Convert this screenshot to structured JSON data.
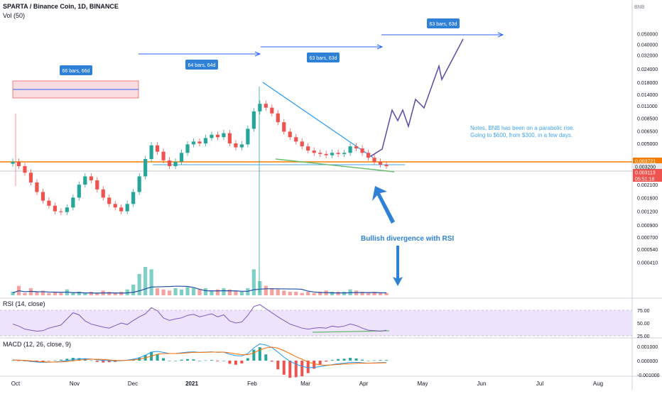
{
  "header": {
    "title": "SPARTA / Binance Coin, 1D, BINANCE",
    "volume_label": "Vol (50)",
    "currency": "BNB"
  },
  "panes": {
    "rsi_label": "RSI (14, close)",
    "macd_label": "MACD (12, 26, close, 9)"
  },
  "chart_data": [
    {
      "type": "candlestick",
      "pane": "price",
      "scale": "log",
      "x_axis": [
        "Oct",
        "Nov",
        "Dec",
        "2021",
        "Feb",
        "Mar",
        "Apr",
        "May",
        "Jun",
        "Jul",
        "Aug"
      ],
      "y_ticks": [
        "0.050000",
        "0.040000",
        "0.032000",
        "0.024000",
        "0.018000",
        "0.014000",
        "0.011000",
        "0.008500",
        "0.006500",
        "0.005000",
        "0.002100",
        "0.001600",
        "0.001200",
        "0.000900",
        "0.000700",
        "0.000540",
        "0.000410"
      ],
      "price_labels": [
        {
          "value": "0.003721",
          "color": "#f57c00"
        },
        {
          "value": "0.003200",
          "color": "#b2b5be"
        },
        {
          "value": "0.003113",
          "color": "#ef5350"
        },
        {
          "value": "05:51:18",
          "color": "#ef5350"
        }
      ],
      "close_path": [
        0.0034,
        0.0031,
        0.0027,
        0.0022,
        0.0018,
        0.0015,
        0.00135,
        0.0012,
        0.00118,
        0.0013,
        0.0016,
        0.0021,
        0.0025,
        0.0023,
        0.0019,
        0.0016,
        0.0014,
        0.0013,
        0.0012,
        0.0014,
        0.0018,
        0.0025,
        0.0036,
        0.0048,
        0.0042,
        0.0035,
        0.0031,
        0.0034,
        0.0041,
        0.0049,
        0.0052,
        0.005,
        0.0056,
        0.006,
        0.0057,
        0.0062,
        0.005,
        0.0046,
        0.0049,
        0.0068,
        0.0098,
        0.0115,
        0.0106,
        0.0094,
        0.0078,
        0.0064,
        0.0057,
        0.0052,
        0.0047,
        0.0043,
        0.0041,
        0.004,
        0.0039,
        0.0041,
        0.004,
        0.0041,
        0.0047,
        0.0045,
        0.0041,
        0.0037,
        0.0034,
        0.0032,
        0.0031
      ],
      "annotations": [
        {
          "text": "66 bars, 66d"
        },
        {
          "text": "64 bars, 64d"
        },
        {
          "text": "63 bars, 63d"
        },
        {
          "text": "63 bars, 63d"
        },
        {
          "text": "Notes, BNB has been on a parabolic rise. Going to $600, from $300, in a few days."
        },
        {
          "text": "Bullish divergence with RSI"
        }
      ]
    },
    {
      "type": "bar",
      "pane": "volume",
      "name": "Vol (50)",
      "values": [
        3,
        8,
        2,
        6,
        3,
        4,
        2,
        3,
        2,
        5,
        2,
        3,
        2,
        3,
        2,
        4,
        3,
        2,
        3,
        5,
        9,
        18,
        24,
        22,
        6,
        5,
        4,
        6,
        5,
        7,
        6,
        5,
        6,
        4,
        5,
        6,
        5,
        4,
        3,
        6,
        22,
        12,
        8,
        6,
        5,
        4,
        3,
        3,
        2,
        3,
        2,
        3,
        4,
        3,
        3,
        3,
        5,
        4,
        3,
        2,
        3,
        2,
        2
      ]
    },
    {
      "type": "line",
      "pane": "rsi",
      "name": "RSI (14, close)",
      "y_ticks": [
        "75.00",
        "50.00",
        "25.00"
      ],
      "ylim": [
        25,
        75
      ],
      "values": [
        48,
        44,
        38,
        36,
        34,
        35,
        40,
        43,
        46,
        58,
        70,
        66,
        54,
        48,
        45,
        42,
        40,
        45,
        50,
        47,
        55,
        62,
        68,
        80,
        74,
        60,
        55,
        58,
        60,
        65,
        67,
        62,
        65,
        68,
        62,
        66,
        54,
        50,
        52,
        65,
        82,
        86,
        78,
        70,
        62,
        55,
        48,
        44,
        40,
        38,
        40,
        41,
        40,
        44,
        42,
        44,
        48,
        45,
        40,
        36,
        35,
        34,
        36
      ]
    },
    {
      "type": "line",
      "pane": "macd",
      "name": "MACD (12, 26, close, 9)",
      "y_ticks": [
        "0.001000",
        "0.000000",
        "-0.001000"
      ],
      "ylim": [
        -0.001,
        0.0015
      ],
      "series": [
        {
          "name": "MACD",
          "color": "#2196f3",
          "values": [
            5e-05,
            3e-05,
            0.0,
            -5e-05,
            -0.0001,
            -0.00012,
            -0.00011,
            -9e-05,
            -6e-05,
            0.0,
            8e-05,
            0.00012,
            0.00014,
            0.00011,
            6e-05,
            2e-05,
            0.0,
            -2e-05,
            0.0,
            4e-05,
            0.0001,
            0.0002,
            0.00038,
            0.0006,
            0.00065,
            0.00058,
            0.0005,
            0.0005,
            0.00055,
            0.0006,
            0.00062,
            0.00058,
            0.0006,
            0.00062,
            0.00058,
            0.0006,
            0.00045,
            0.00035,
            0.00033,
            0.0005,
            0.0009,
            0.00118,
            0.0011,
            0.00092,
            0.0006,
            0.00025,
            -5e-05,
            -0.00025,
            -0.0004,
            -0.0005,
            -0.00048,
            -0.00042,
            -0.00035,
            -0.00028,
            -0.00022,
            -0.00018,
            -0.00012,
            -0.00012,
            -0.00015,
            -0.00018,
            -0.00016,
            -0.00014,
            -0.00013
          ]
        },
        {
          "name": "Signal",
          "color": "#ff6d00",
          "values": [
            4e-05,
            4e-05,
            2e-05,
            -1e-05,
            -5e-05,
            -8e-05,
            -0.0001,
            -0.0001,
            -9e-05,
            -6e-05,
            -1e-05,
            4e-05,
            8e-05,
            0.0001,
            0.0001,
            8e-05,
            5e-05,
            2e-05,
            1e-05,
            2e-05,
            5e-05,
            0.0001,
            0.0002,
            0.00032,
            0.00045,
            0.0005,
            0.0005,
            0.0005,
            0.00052,
            0.00055,
            0.00058,
            0.00058,
            0.00059,
            0.0006,
            0.0006,
            0.0006,
            0.00055,
            0.00048,
            0.00042,
            0.00042,
            0.00055,
            0.00075,
            0.0009,
            0.00095,
            0.00088,
            0.0007,
            0.0005,
            0.00028,
            0.0001,
            -0.0001,
            -0.00022,
            -0.0003,
            -0.00032,
            -0.0003,
            -0.00027,
            -0.00024,
            -0.00021,
            -0.00019,
            -0.00018,
            -0.00018,
            -0.00017,
            -0.00016,
            -0.00015
          ]
        }
      ]
    }
  ]
}
